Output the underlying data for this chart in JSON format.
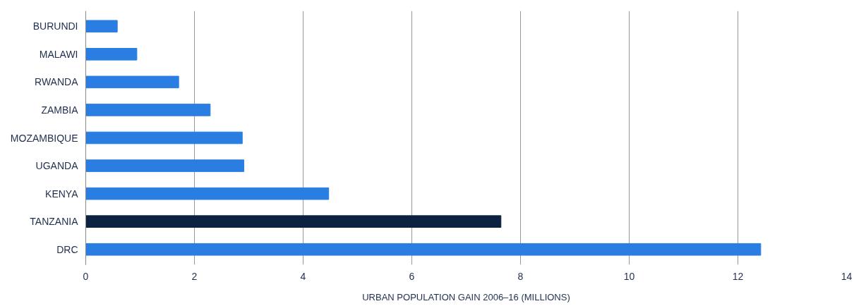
{
  "chart_data": {
    "type": "bar",
    "orientation": "horizontal",
    "xlabel": "URBAN POPULATION GAIN 2006–16 (MILLIONS)",
    "categories": [
      "BURUNDI",
      "MALAWI",
      "RWANDA",
      "ZAMBIA",
      "MOZAMBIQUE",
      "UGANDA",
      "KENYA",
      "TANZANIA",
      "DRC"
    ],
    "values": [
      0.58,
      0.94,
      1.71,
      2.29,
      2.88,
      2.91,
      4.47,
      7.64,
      12.42
    ],
    "colors": [
      "#2a7de1",
      "#2a7de1",
      "#2a7de1",
      "#2a7de1",
      "#2a7de1",
      "#2a7de1",
      "#2a7de1",
      "#0b2341",
      "#2a7de1"
    ],
    "xlim": [
      0,
      14
    ],
    "xticks": [
      0,
      2,
      4,
      6,
      8,
      10,
      12,
      14
    ],
    "grid": "x"
  }
}
